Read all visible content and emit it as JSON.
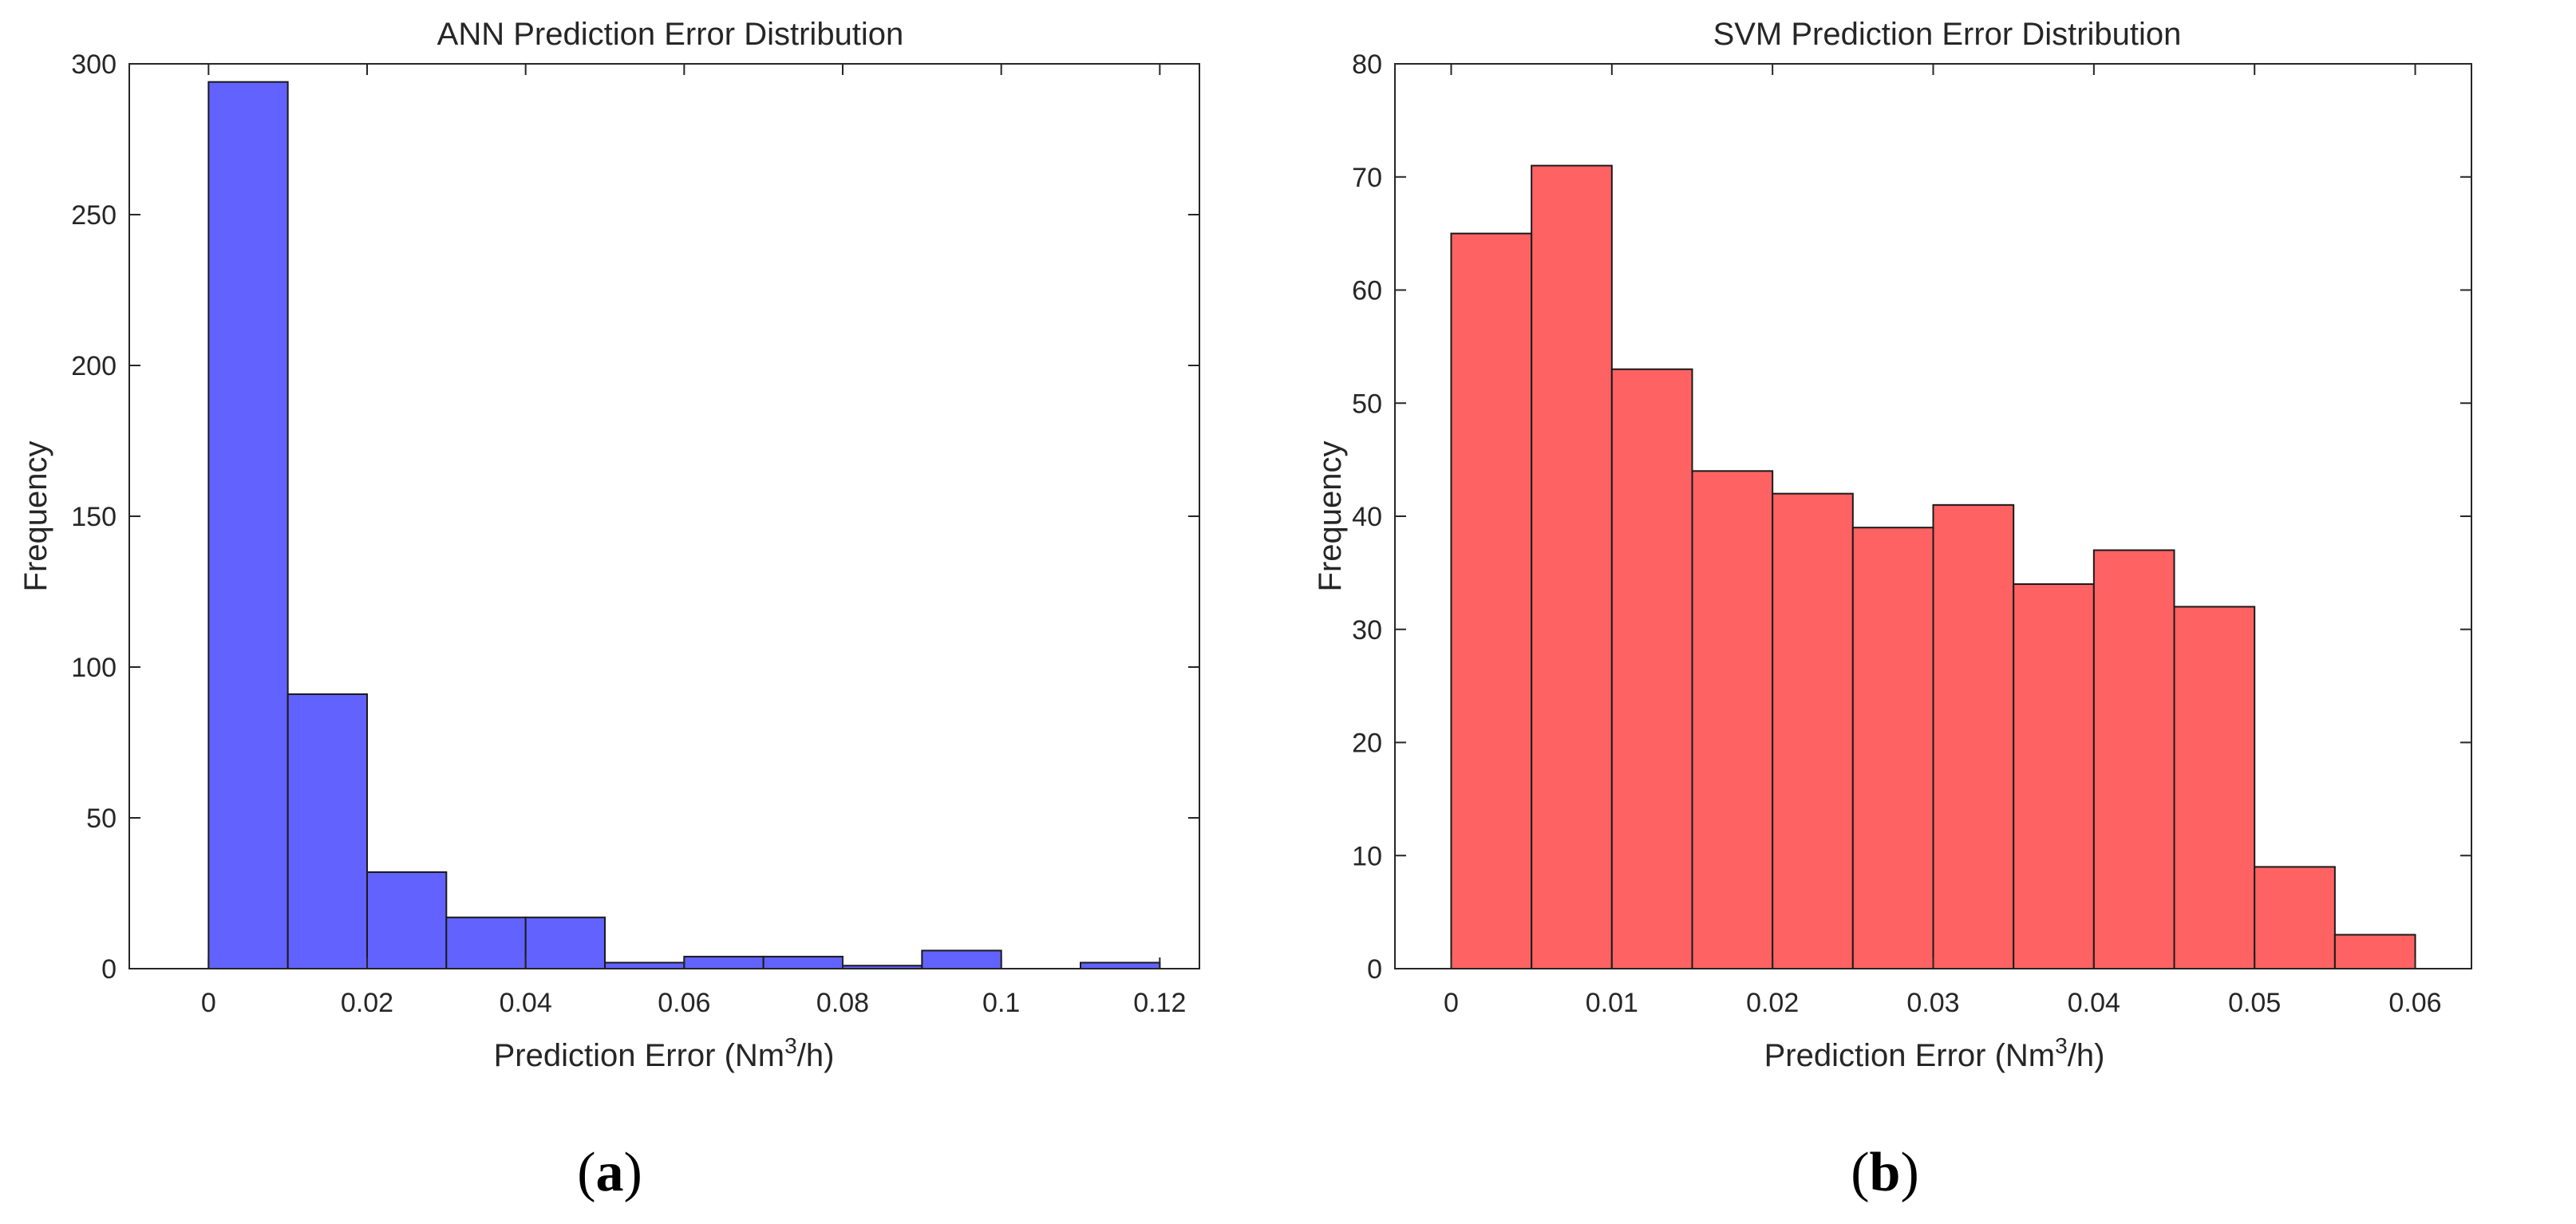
{
  "chart_data": [
    {
      "type": "bar",
      "id": "ann",
      "title": "ANN Prediction Error Distribution",
      "xlabel": {
        "prefix": "Prediction Error (Nm",
        "sup": "3",
        "suffix": "/h)"
      },
      "ylabel": "Frequency",
      "panel": {
        "open": "(",
        "letter": "a",
        "close": ")"
      },
      "xlim": [
        -0.01,
        0.125
      ],
      "ylim": [
        0,
        300
      ],
      "xticks": [
        0,
        0.02,
        0.04,
        0.06,
        0.08,
        0.1,
        0.12
      ],
      "xtick_labels": [
        "0",
        "0.02",
        "0.04",
        "0.06",
        "0.08",
        "0.1",
        "0.12"
      ],
      "yticks": [
        0,
        50,
        100,
        150,
        200,
        250,
        300
      ],
      "ytick_labels": [
        "0",
        "50",
        "100",
        "150",
        "200",
        "250",
        "300"
      ],
      "bin_edges": [
        0,
        0.01,
        0.02,
        0.03,
        0.04,
        0.05,
        0.06,
        0.07,
        0.08,
        0.09,
        0.1,
        0.11,
        0.12
      ],
      "values": [
        294,
        91,
        32,
        17,
        17,
        2,
        4,
        4,
        1,
        6,
        0,
        2
      ],
      "color": "#6262ff",
      "edge_color": "#1a1a1a"
    },
    {
      "type": "bar",
      "id": "svm",
      "title": "SVM Prediction Error Distribution",
      "xlabel": {
        "prefix": "Prediction Error (Nm",
        "sup": "3",
        "suffix": "/h)"
      },
      "ylabel": "Frequency",
      "panel": {
        "open": "(",
        "letter": "b",
        "close": ")"
      },
      "xlim": [
        -0.0035,
        0.0635
      ],
      "ylim": [
        0,
        80
      ],
      "xticks": [
        0,
        0.01,
        0.02,
        0.03,
        0.04,
        0.05,
        0.06
      ],
      "xtick_labels": [
        "0",
        "0.01",
        "0.02",
        "0.03",
        "0.04",
        "0.05",
        "0.06"
      ],
      "yticks": [
        0,
        10,
        20,
        30,
        40,
        50,
        60,
        70,
        80
      ],
      "ytick_labels": [
        "0",
        "10",
        "20",
        "30",
        "40",
        "50",
        "60",
        "70",
        "80"
      ],
      "bin_edges": [
        0,
        0.005,
        0.01,
        0.015,
        0.02,
        0.025,
        0.03,
        0.035,
        0.04,
        0.045,
        0.05,
        0.055,
        0.06
      ],
      "values": [
        65,
        71,
        53,
        44,
        42,
        39,
        41,
        34,
        37,
        32,
        9,
        3
      ],
      "color": "#ff6262",
      "edge_color": "#1a1a1a"
    }
  ]
}
